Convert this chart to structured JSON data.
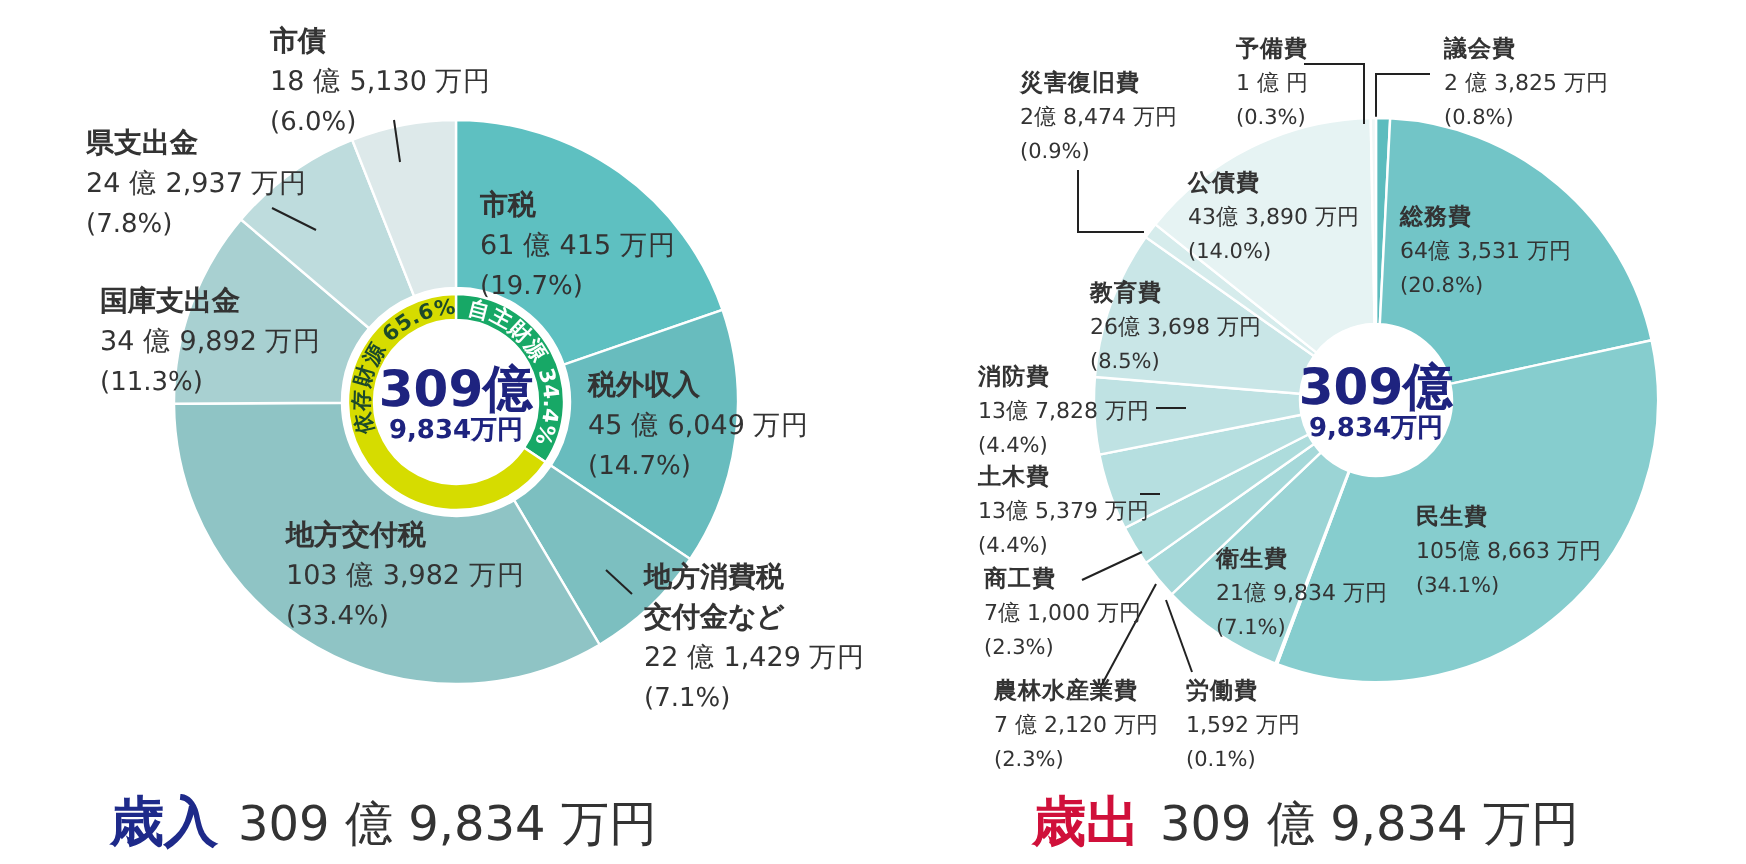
{
  "chart_data": [
    {
      "type": "donut",
      "title": "歳入",
      "subtitle": "309 億 9,834 万円",
      "categories": [
        "市税",
        "税外収入",
        "地方消費税交付金など",
        "地方交付税",
        "国庫支出金",
        "県支出金",
        "市債"
      ],
      "values": [
        19.7,
        14.7,
        7.1,
        33.4,
        11.3,
        7.8,
        6.0
      ],
      "colors": [
        "#5ec0c1",
        "#68bcbe",
        "#7cbfc0",
        "#8fc4c5",
        "#a8d0d1",
        "#bedcdd",
        "#dde9ea"
      ],
      "value_labels": [
        "61 億 415 万円\n(19.7%)",
        "45 億 6,049 万円\n(14.7%)",
        "22 億 1,429 万円\n(7.1%)",
        "103 億 3,982 万円\n(33.4%)",
        "34 億 9,892 万円\n(11.3%)",
        "24 億 2,937 万円\n(7.8%)",
        "18 億 5,130 万円\n(6.0%)"
      ]
    },
    {
      "type": "donut",
      "categories": [
        "自主財源",
        "依存財源"
      ],
      "values": [
        34.4,
        65.6
      ],
      "colors": [
        "#17a866",
        "#d6dc00"
      ],
      "value_labels": [
        "34.4%",
        "65.6%"
      ],
      "annotations": [
        "309億\n9,834万円"
      ]
    },
    {
      "type": "donut",
      "title": "歳出",
      "subtitle": "309 億 9,834 万円",
      "categories": [
        "議会費",
        "総務費",
        "民生費",
        "労働費",
        "衛生費",
        "農林水産業費",
        "商工費",
        "土木費",
        "消防費",
        "教育費",
        "災害復旧費",
        "公債費",
        "予備費"
      ],
      "values": [
        0.8,
        20.8,
        34.1,
        0.1,
        7.1,
        2.3,
        2.3,
        4.4,
        4.4,
        8.5,
        0.9,
        14.0,
        0.3
      ],
      "colors": [
        "#5cbcbe",
        "#72c5c7",
        "#86cdce",
        "#8fd0d1",
        "#9bd4d5",
        "#a5d8d9",
        "#addcdc",
        "#b6dfe0",
        "#bfe2e3",
        "#c9e6e7",
        "#d6ecec",
        "#e6f3f3",
        "#f0f7f7"
      ],
      "value_labels": [
        "2 億 3,825 万円\n(0.8%)",
        "64億 3,531 万円\n(20.8%)",
        "105億 8,663 万円\n(34.1%)",
        "1,592 万円\n(0.1%)",
        "21億 9,834 万円\n(7.1%)",
        "7 億 2,120 万円\n(2.3%)",
        "7億 1,000 万円\n(2.3%)",
        "13億 5,379 万円\n(4.4%)",
        "13億 7,828 万円\n(4.4%)",
        "26億 3,698 万円\n(8.5%)",
        "2億 8,474 万円\n(0.9%)",
        "43億 3,890 万円\n(14.0%)",
        "1 億 円\n(0.3%)"
      ],
      "annotations": [
        "309億\n9,834万円"
      ]
    }
  ]
}
